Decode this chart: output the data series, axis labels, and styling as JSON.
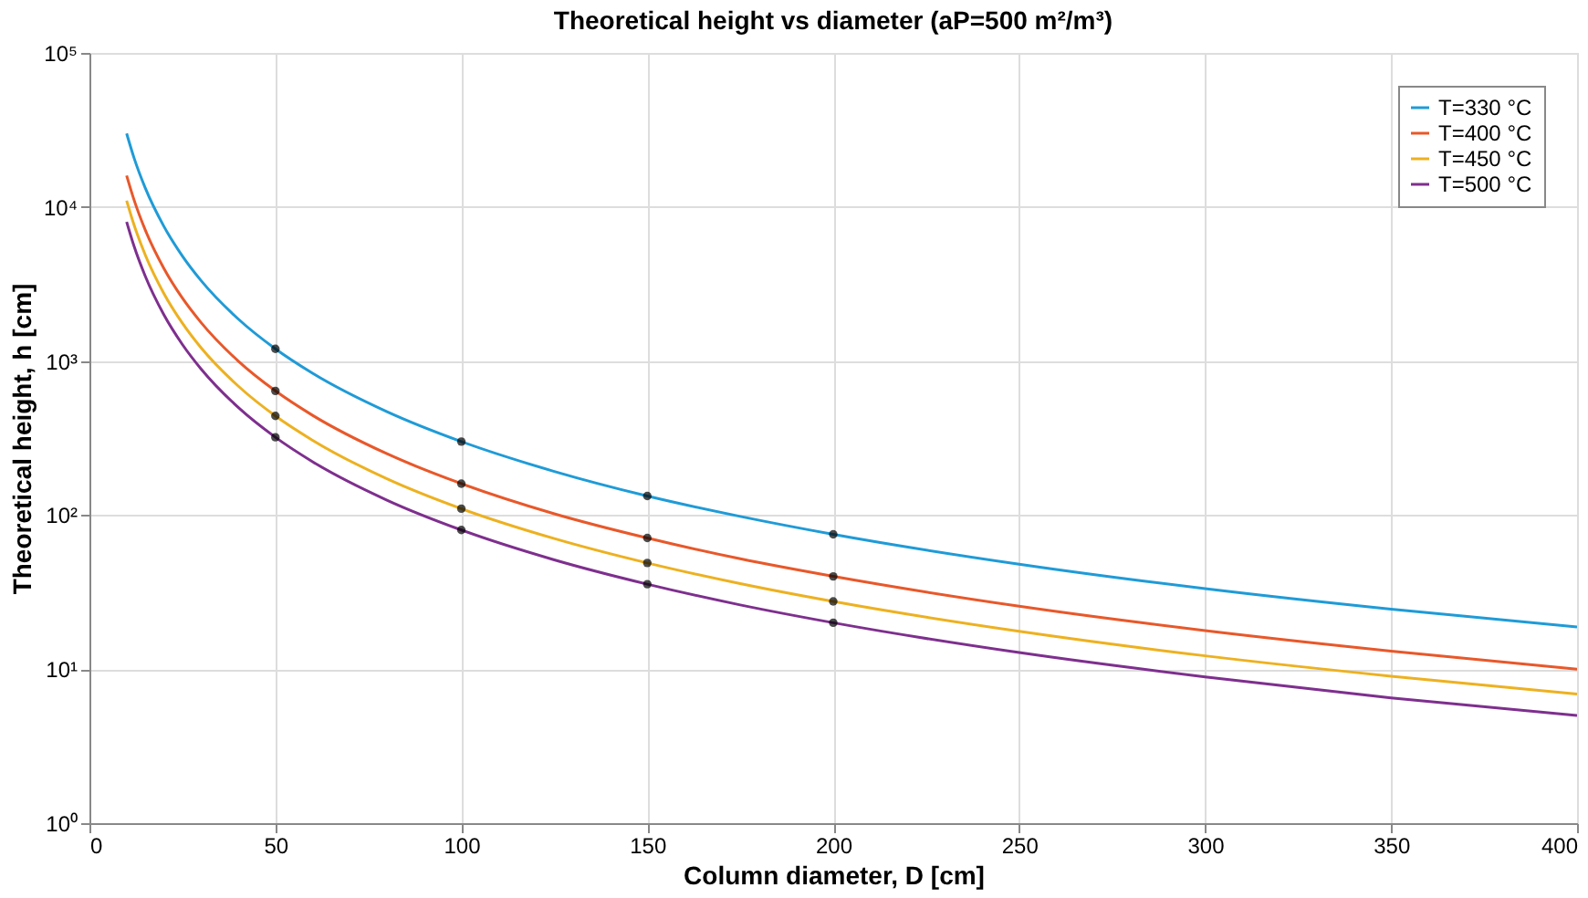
{
  "chart_data": {
    "type": "line",
    "title": "Theoretical height vs diameter (aP=500 m²/m³)",
    "xlabel": "Column diameter, D [cm]",
    "ylabel": "Theoretical height, h [cm]",
    "xlim": [
      0,
      400
    ],
    "xticks": [
      0,
      50,
      100,
      150,
      200,
      250,
      300,
      350,
      400
    ],
    "ylim": [
      1,
      100000
    ],
    "yticks": [
      {
        "value": 1,
        "label": "10⁰"
      },
      {
        "value": 10,
        "label": "10¹"
      },
      {
        "value": 100,
        "label": "10²"
      },
      {
        "value": 1000,
        "label": "10³"
      },
      {
        "value": 10000,
        "label": "10⁴"
      },
      {
        "value": 100000,
        "label": "10⁵"
      }
    ],
    "log": "y",
    "grid": true,
    "legend": "top right",
    "line_style": "solid",
    "series": [
      {
        "name": "T=330 °C",
        "color": "#1f9bd7",
        "x": [
          10,
          12,
          15,
          20,
          25,
          30,
          40,
          50,
          60,
          80,
          100,
          125,
          150,
          175,
          200,
          250,
          300,
          350,
          400
        ],
        "values": [
          30000,
          20800,
          13300,
          7500,
          4800,
          3330,
          1875,
          1200,
          833,
          469,
          300,
          192,
          133,
          98,
          75,
          48,
          33.3,
          24.5,
          18.8
        ]
      },
      {
        "name": "T=400 °C",
        "color": "#e8582a",
        "x": [
          10,
          12,
          15,
          20,
          25,
          30,
          40,
          50,
          60,
          80,
          100,
          125,
          150,
          175,
          200,
          250,
          300,
          350,
          400
        ],
        "values": [
          16000,
          11100,
          7100,
          4000,
          2560,
          1780,
          1000,
          640,
          444,
          250,
          160,
          102,
          71,
          52,
          40,
          25.6,
          17.8,
          13.1,
          10
        ]
      },
      {
        "name": "T=450 °C",
        "color": "#edb120",
        "x": [
          10,
          12,
          15,
          20,
          25,
          30,
          40,
          50,
          60,
          80,
          100,
          125,
          150,
          175,
          200,
          250,
          300,
          350,
          400
        ],
        "values": [
          11000,
          7640,
          4890,
          2750,
          1760,
          1220,
          688,
          440,
          306,
          172,
          110,
          70.4,
          48.9,
          35.9,
          27.5,
          17.6,
          12.2,
          9.0,
          6.9
        ]
      },
      {
        "name": "T=500 °C",
        "color": "#7e2f8e",
        "x": [
          10,
          12,
          15,
          20,
          25,
          30,
          40,
          50,
          60,
          80,
          100,
          125,
          150,
          175,
          200,
          250,
          300,
          350,
          400
        ],
        "values": [
          8000,
          5560,
          3560,
          2000,
          1280,
          889,
          500,
          320,
          222,
          125,
          80,
          51.2,
          35.6,
          26.1,
          20,
          12.8,
          8.9,
          6.5,
          5.0
        ]
      },
      {
        "type": "scatter",
        "color": "#000000",
        "marker": "circle",
        "x": [
          50,
          100,
          150,
          200,
          50,
          100,
          150,
          200,
          50,
          100,
          150,
          200,
          50,
          100,
          150,
          200
        ],
        "values": [
          1200,
          300,
          133,
          75,
          640,
          160,
          71,
          40,
          440,
          110,
          48.9,
          27.5,
          320,
          80,
          35.6,
          20
        ]
      }
    ]
  }
}
